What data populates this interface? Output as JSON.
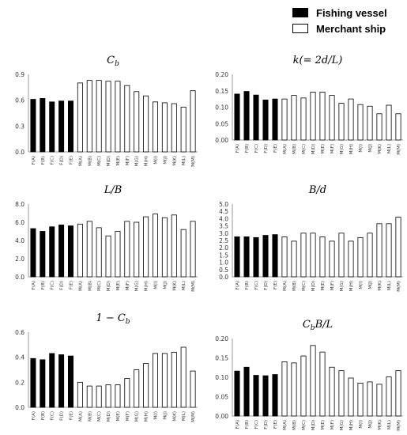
{
  "legend": {
    "items": [
      {
        "label": "Fishing vessel",
        "color": "#000000"
      },
      {
        "label": "Merchant ship",
        "color": "#ffffff"
      }
    ]
  },
  "colors": {
    "fishing": "#000000",
    "merchant": "#ffffff",
    "bar_stroke": "#000000",
    "axis": "#999999"
  },
  "categories": [
    "F(A)",
    "F(B)",
    "F(C)",
    "F(D)",
    "F(E)",
    "M(A)",
    "M(B)",
    "M(C)",
    "M(D)",
    "M(E)",
    "M(F)",
    "M(G)",
    "M(H)",
    "M(I)",
    "M(J)",
    "M(K)",
    "M(L)",
    "M(M)"
  ],
  "fishing_count": 5,
  "chart_data": [
    {
      "type": "bar",
      "title": "C_b",
      "ylim": [
        0,
        0.9
      ],
      "yticks": [
        0.0,
        0.3,
        0.6,
        0.9
      ],
      "tick_decimals": 1,
      "categories": [
        "F(A)",
        "F(B)",
        "F(C)",
        "F(D)",
        "F(E)",
        "M(A)",
        "M(B)",
        "M(C)",
        "M(D)",
        "M(E)",
        "M(F)",
        "M(G)",
        "M(H)",
        "M(I)",
        "M(J)",
        "M(K)",
        "M(L)",
        "M(M)"
      ],
      "values": [
        0.61,
        0.62,
        0.58,
        0.59,
        0.59,
        0.8,
        0.83,
        0.83,
        0.82,
        0.82,
        0.77,
        0.7,
        0.65,
        0.58,
        0.57,
        0.56,
        0.52,
        0.71
      ],
      "legend": "top-right",
      "grid": false
    },
    {
      "type": "bar",
      "title": "k(= 2d/L)",
      "ylim": [
        0,
        0.2
      ],
      "yticks": [
        0.0,
        0.05,
        0.1,
        0.15,
        0.2
      ],
      "tick_decimals": 2,
      "categories": [
        "F(A)",
        "F(B)",
        "F(C)",
        "F(D)",
        "F(E)",
        "M(A)",
        "M(B)",
        "M(C)",
        "M(D)",
        "M(E)",
        "M(F)",
        "M(G)",
        "M(H)",
        "M(I)",
        "M(J)",
        "M(K)",
        "M(L)",
        "M(M)"
      ],
      "values": [
        0.14,
        0.148,
        0.137,
        0.122,
        0.125,
        0.125,
        0.136,
        0.128,
        0.146,
        0.146,
        0.136,
        0.112,
        0.125,
        0.108,
        0.103,
        0.08,
        0.106,
        0.08
      ],
      "grid": false
    },
    {
      "type": "bar",
      "title": "L/B",
      "ylim": [
        0,
        8
      ],
      "yticks": [
        0.0,
        2.0,
        4.0,
        6.0,
        8.0
      ],
      "tick_decimals": 1,
      "categories": [
        "F(A)",
        "F(B)",
        "F(C)",
        "F(D)",
        "F(E)",
        "M(A)",
        "M(B)",
        "M(C)",
        "M(D)",
        "M(E)",
        "M(F)",
        "M(G)",
        "M(H)",
        "M(I)",
        "M(J)",
        "M(K)",
        "M(L)",
        "M(M)"
      ],
      "values": [
        5.3,
        5.0,
        5.5,
        5.7,
        5.6,
        5.8,
        6.1,
        5.4,
        4.5,
        5.0,
        6.1,
        6.0,
        6.6,
        6.9,
        6.5,
        6.8,
        5.2,
        6.1
      ],
      "grid": false
    },
    {
      "type": "bar",
      "title": "B/d",
      "ylim": [
        0,
        5
      ],
      "yticks": [
        0.0,
        0.5,
        1.0,
        1.5,
        2.0,
        2.5,
        3.0,
        3.5,
        4.0,
        4.5,
        5.0
      ],
      "tick_decimals": 1,
      "categories": [
        "F(A)",
        "F(B)",
        "F(C)",
        "F(D)",
        "F(E)",
        "M(A)",
        "M(B)",
        "M(C)",
        "M(D)",
        "M(E)",
        "M(F)",
        "M(G)",
        "M(H)",
        "M(I)",
        "M(J)",
        "M(K)",
        "M(L)",
        "M(M)"
      ],
      "values": [
        2.75,
        2.75,
        2.7,
        2.85,
        2.9,
        2.75,
        2.45,
        3.0,
        3.0,
        2.75,
        2.45,
        3.0,
        2.45,
        2.7,
        3.0,
        3.65,
        3.65,
        4.1
      ],
      "grid": false
    },
    {
      "type": "bar",
      "title": "1 − C_b",
      "ylim": [
        0,
        0.6
      ],
      "yticks": [
        0.0,
        0.2,
        0.4,
        0.6
      ],
      "tick_decimals": 1,
      "categories": [
        "F(A)",
        "F(B)",
        "F(C)",
        "F(D)",
        "F(E)",
        "M(A)",
        "M(B)",
        "M(C)",
        "M(D)",
        "M(E)",
        "M(F)",
        "M(G)",
        "M(H)",
        "M(I)",
        "M(J)",
        "M(K)",
        "M(L)",
        "M(M)"
      ],
      "values": [
        0.39,
        0.38,
        0.43,
        0.42,
        0.41,
        0.2,
        0.17,
        0.17,
        0.18,
        0.18,
        0.23,
        0.3,
        0.35,
        0.43,
        0.43,
        0.44,
        0.48,
        0.29
      ],
      "grid": false
    },
    {
      "type": "bar",
      "title": "C_bB/L",
      "ylim": [
        0,
        0.2
      ],
      "yticks": [
        0.0,
        0.05,
        0.1,
        0.15,
        0.2
      ],
      "tick_decimals": 2,
      "categories": [
        "F(A)",
        "F(B)",
        "F(C)",
        "F(D)",
        "F(E)",
        "M(A)",
        "M(B)",
        "M(C)",
        "M(D)",
        "M(E)",
        "M(F)",
        "M(G)",
        "M(H)",
        "M(I)",
        "M(J)",
        "M(K)",
        "M(L)",
        "M(M)"
      ],
      "values": [
        0.116,
        0.126,
        0.105,
        0.104,
        0.107,
        0.14,
        0.137,
        0.155,
        0.182,
        0.165,
        0.126,
        0.117,
        0.098,
        0.085,
        0.088,
        0.082,
        0.101,
        0.117
      ],
      "grid": false
    }
  ]
}
